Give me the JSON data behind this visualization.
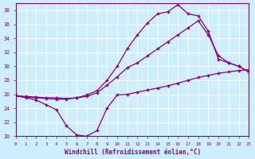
{
  "xlabel": "Windchill (Refroidissement éolien,°C)",
  "background_color": "#cceeff",
  "grid_color": "#ffffff",
  "line_color": "#880088",
  "xlim": [
    0,
    23
  ],
  "ylim": [
    20,
    39
  ],
  "yticks": [
    20,
    22,
    24,
    26,
    28,
    30,
    32,
    34,
    36,
    38
  ],
  "xticks": [
    0,
    1,
    2,
    3,
    4,
    5,
    6,
    7,
    8,
    9,
    10,
    11,
    12,
    13,
    14,
    15,
    16,
    17,
    18,
    19,
    20,
    21,
    22,
    23
  ],
  "line1_x": [
    0,
    1,
    2,
    3,
    4,
    5,
    6,
    7,
    8,
    9,
    10,
    11,
    12,
    13,
    14,
    15,
    16,
    17,
    18,
    19,
    20,
    21,
    22,
    23
  ],
  "line1_y": [
    25.8,
    25.5,
    25.2,
    24.5,
    23.8,
    21.5,
    20.2,
    20.0,
    20.8,
    24.0,
    25.9,
    26.0,
    26.3,
    26.6,
    26.9,
    27.2,
    27.6,
    28.0,
    28.4,
    28.7,
    29.0,
    29.2,
    29.4,
    29.5
  ],
  "line2_x": [
    0,
    1,
    2,
    3,
    4,
    5,
    6,
    7,
    8,
    9,
    10,
    11,
    12,
    13,
    14,
    15,
    16,
    17,
    18,
    19,
    20,
    21,
    22,
    23
  ],
  "line2_y": [
    25.8,
    25.7,
    25.6,
    25.5,
    25.5,
    25.4,
    25.5,
    25.7,
    26.2,
    27.3,
    28.5,
    29.8,
    30.5,
    31.5,
    32.5,
    33.5,
    34.5,
    35.5,
    36.5,
    34.5,
    31.5,
    30.5,
    30.0,
    29.2
  ],
  "line3_x": [
    0,
    1,
    2,
    3,
    4,
    5,
    6,
    7,
    8,
    9,
    10,
    11,
    12,
    13,
    14,
    15,
    16,
    17,
    18,
    19,
    20,
    21,
    22,
    23
  ],
  "line3_y": [
    25.8,
    25.6,
    25.5,
    25.4,
    25.3,
    25.3,
    25.5,
    25.9,
    26.5,
    28.0,
    30.0,
    32.5,
    34.5,
    36.2,
    37.5,
    37.8,
    38.8,
    37.5,
    37.2,
    35.0,
    31.0,
    30.5,
    30.0,
    29.2
  ]
}
